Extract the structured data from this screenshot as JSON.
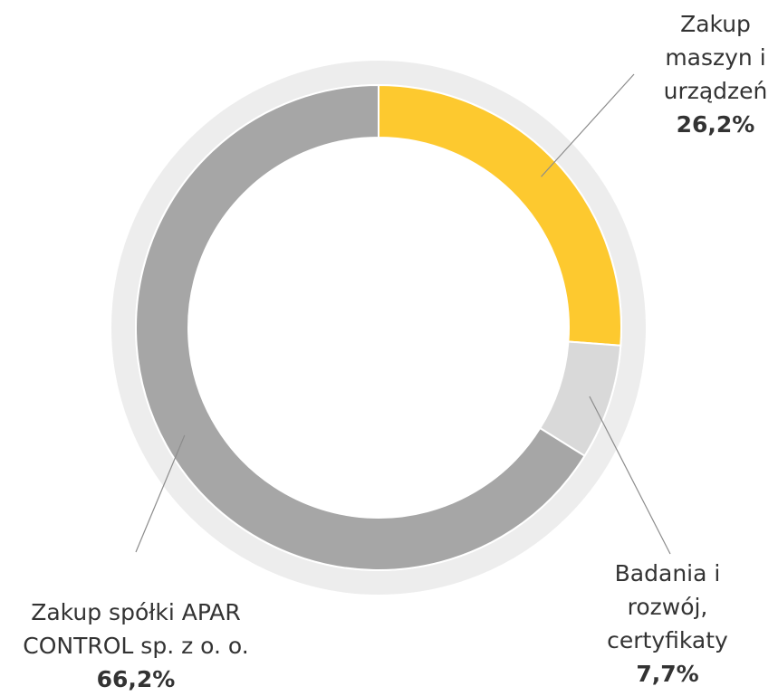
{
  "chart_data": {
    "type": "donut",
    "categories": [
      "Zakup maszyn i urządzeń",
      "Badania i rozwój, certyfikaty",
      "Zakup spółki APAR CONTROL sp. z o. o."
    ],
    "values": [
      26.2,
      7.7,
      66.2
    ],
    "value_labels": [
      "26,2%",
      "7,7%",
      "66,2%"
    ],
    "colors": [
      "#fdc92f",
      "#d9d9d9",
      "#a6a6a6"
    ]
  }
}
